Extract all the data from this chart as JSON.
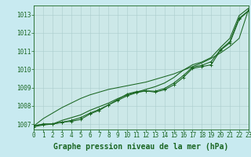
{
  "title": "Graphe pression niveau de la mer (hPa)",
  "background_color": "#c8eaf0",
  "plot_bg_color": "#cce8e8",
  "grid_color": "#aacccc",
  "line_color": "#1a6622",
  "tick_fontsize": 5.5,
  "xlabel_fontsize": 7,
  "xlim": [
    0,
    23
  ],
  "ylim": [
    1006.7,
    1013.5
  ],
  "yticks": [
    1007,
    1008,
    1009,
    1010,
    1011,
    1012,
    1013
  ],
  "xticks": [
    0,
    1,
    2,
    3,
    4,
    5,
    6,
    7,
    8,
    9,
    10,
    11,
    12,
    13,
    14,
    15,
    16,
    17,
    18,
    19,
    20,
    21,
    22,
    23
  ],
  "series1": [
    1006.9,
    1007.0,
    1007.0,
    1007.1,
    1007.15,
    1007.25,
    1007.55,
    1007.75,
    1008.05,
    1008.35,
    1008.65,
    1008.78,
    1008.82,
    1008.75,
    1008.88,
    1009.15,
    1009.55,
    1010.05,
    1010.15,
    1010.25,
    1011.05,
    1011.45,
    1012.75,
    1013.2
  ],
  "series2": [
    1006.9,
    1007.0,
    1007.0,
    1007.2,
    1007.35,
    1007.5,
    1007.75,
    1007.95,
    1008.15,
    1008.4,
    1008.6,
    1008.75,
    1008.9,
    1009.05,
    1009.25,
    1009.55,
    1009.95,
    1010.25,
    1010.4,
    1010.65,
    1011.2,
    1011.7,
    1012.95,
    1013.35
  ],
  "series3": [
    1006.85,
    1006.95,
    1007.0,
    1007.1,
    1007.2,
    1007.35,
    1007.6,
    1007.8,
    1008.05,
    1008.3,
    1008.55,
    1008.72,
    1008.82,
    1008.8,
    1008.95,
    1009.25,
    1009.65,
    1010.12,
    1010.22,
    1010.42,
    1011.08,
    1011.52,
    1012.8,
    1013.22
  ],
  "series_straight": [
    1006.9,
    1007.3,
    1007.6,
    1007.9,
    1008.15,
    1008.4,
    1008.6,
    1008.75,
    1008.9,
    1009.0,
    1009.1,
    1009.2,
    1009.3,
    1009.45,
    1009.6,
    1009.75,
    1009.95,
    1010.15,
    1010.35,
    1010.6,
    1010.9,
    1011.25,
    1011.7,
    1013.28
  ]
}
